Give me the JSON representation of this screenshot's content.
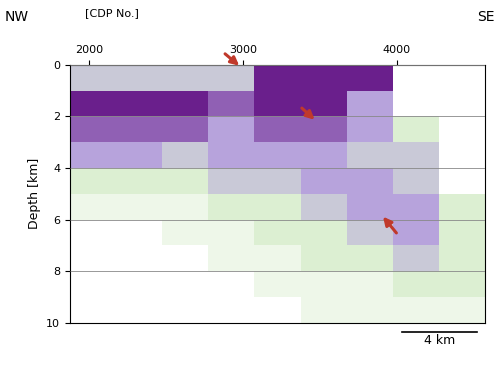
{
  "chart_data": {
    "type": "heatmap",
    "x_label": "[CDP No.]",
    "y_label": "Depth [km]",
    "ends": [
      "NW",
      "SE"
    ],
    "xlim": [
      1875,
      4575
    ],
    "xticks": [
      2000,
      3000,
      4000
    ],
    "ylim": [
      10,
      0
    ],
    "yticks": [
      0,
      2,
      4,
      6,
      8,
      10
    ],
    "grid": true,
    "x_edges": [
      1875,
      2175,
      2475,
      2775,
      3075,
      3375,
      3675,
      3975,
      4275,
      4575
    ],
    "y_edges": [
      0,
      1,
      2,
      3,
      4,
      5,
      6,
      7,
      8,
      9,
      10
    ],
    "cells": [
      [
        4,
        4,
        4,
        4,
        7,
        7,
        7,
        null,
        null
      ],
      [
        7,
        7,
        7,
        6,
        7,
        7,
        5,
        null,
        null
      ],
      [
        6,
        6,
        6,
        5,
        6,
        6,
        5,
        3,
        null
      ],
      [
        5,
        5,
        4,
        5,
        5,
        5,
        4,
        4,
        null
      ],
      [
        3,
        3,
        3,
        4,
        4,
        5,
        5,
        4,
        null
      ],
      [
        2,
        2,
        2,
        3,
        3,
        4,
        5,
        5,
        3
      ],
      [
        1,
        1,
        2,
        2,
        3,
        3,
        4,
        5,
        3
      ],
      [
        1,
        1,
        1,
        2,
        2,
        3,
        3,
        4,
        3
      ],
      [
        1,
        1,
        1,
        1,
        2,
        2,
        2,
        3,
        3
      ],
      [
        1,
        1,
        1,
        1,
        1,
        2,
        2,
        2,
        2
      ]
    ],
    "arrows": [
      {
        "x": 2990,
        "y": 0.1,
        "from_x": 2870,
        "from_y": -0.5,
        "color": "#c0392b"
      },
      {
        "x": 3480,
        "y": 2.2,
        "from_x": 3370,
        "from_y": 1.6,
        "color": "#c0392b"
      },
      {
        "x": 3900,
        "y": 5.8,
        "from_x": 4010,
        "from_y": 6.6,
        "color": "#c0392b"
      }
    ],
    "scale_bar": "4 km"
  }
}
